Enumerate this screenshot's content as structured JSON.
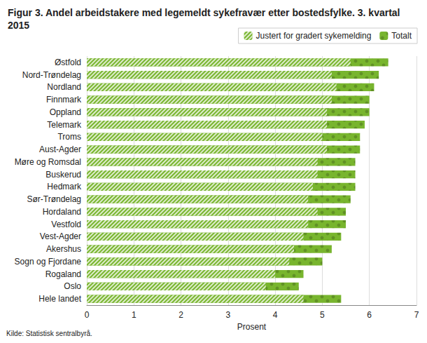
{
  "chart_data": {
    "type": "bar",
    "orientation": "horizontal",
    "title": "Figur 3. Andel arbeidstakere med legemeldt sykefravær etter bostedsfylke. 3. kvartal 2015",
    "source": "Kilde: Statistisk sentralbyrå.",
    "x_label": "Prosent",
    "categories": [
      "Østfold",
      "Nord-Trøndelag",
      "Nordland",
      "Finnmark",
      "Oppland",
      "Telemark",
      "Troms",
      "Aust-Agder",
      "Møre og Romsdal",
      "Buskerud",
      "Hedmark",
      "Sør-Trøndelag",
      "Hordaland",
      "Vestfold",
      "Vest-Agder",
      "Akershus",
      "Sogn og Fjordane",
      "Rogaland",
      "Oslo",
      "Hele landet"
    ],
    "series": [
      {
        "name": "Justert for gradert sykemelding",
        "color": "#78b52e",
        "marker": "hatched",
        "values": [
          5.6,
          5.2,
          5.3,
          5.2,
          5.1,
          5.1,
          5.0,
          5.1,
          4.9,
          4.9,
          4.8,
          4.7,
          4.9,
          4.7,
          4.6,
          4.4,
          4.3,
          4.0,
          3.8,
          4.6
        ]
      },
      {
        "name": "Totalt",
        "color": "#78b52e",
        "marker": "solid",
        "values": [
          6.4,
          6.2,
          6.1,
          6.0,
          6.0,
          5.9,
          5.8,
          5.8,
          5.7,
          5.7,
          5.7,
          5.6,
          5.5,
          5.5,
          5.4,
          5.2,
          5.0,
          4.6,
          4.5,
          5.4
        ]
      }
    ],
    "xlim": [
      0,
      7
    ],
    "xticks": [
      0,
      1,
      2,
      3,
      4,
      5,
      6,
      7
    ],
    "grid": true,
    "legend": "top-right",
    "stacked": false
  }
}
